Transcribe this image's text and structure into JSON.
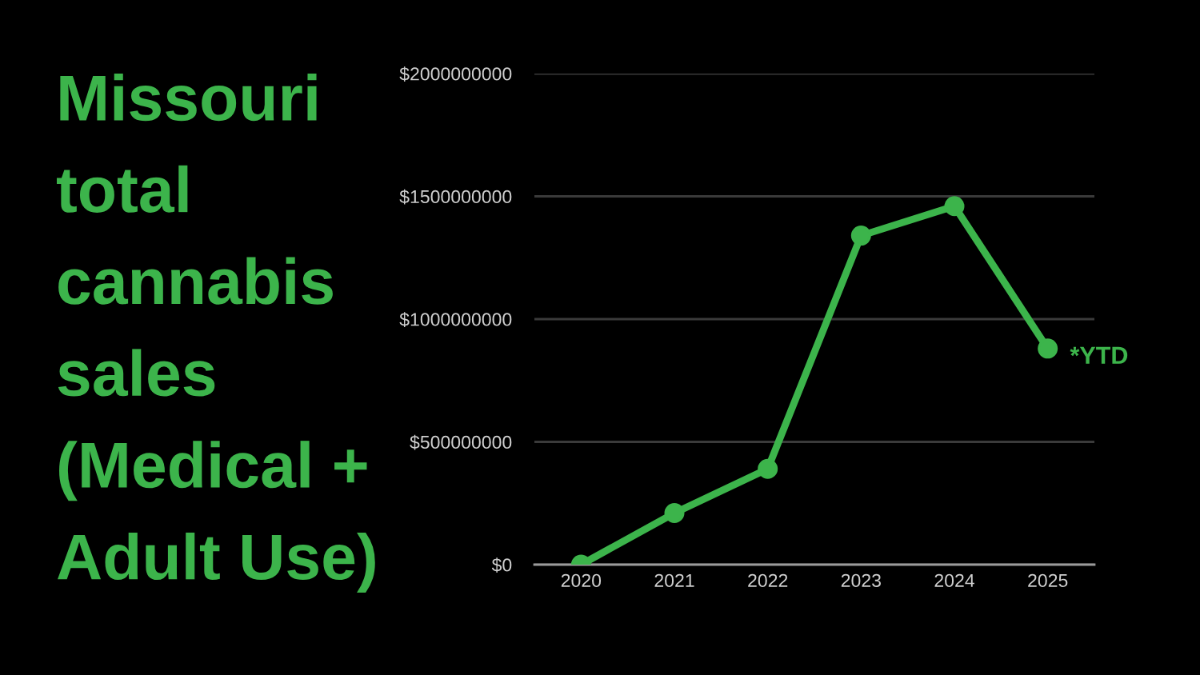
{
  "chart_data": {
    "type": "line",
    "title": "Missouri\ntotal\ncannabis\nsales\n(Medical +\nAdult Use)",
    "categories": [
      "2020",
      "2021",
      "2022",
      "2023",
      "2024",
      "2025"
    ],
    "series": [
      {
        "color": "#3cb44b",
        "values": [
          0,
          210000000,
          390000000,
          1340000000,
          1460000000,
          880000000
        ]
      }
    ],
    "ylim": [
      0,
      2000000000
    ],
    "yticks": [
      {
        "value": 0,
        "label": "$0"
      },
      {
        "value": 500000000,
        "label": "$500000000"
      },
      {
        "value": 1000000000,
        "label": "$1000000000"
      },
      {
        "value": 1500000000,
        "label": "$1500000000"
      },
      {
        "value": 2000000000,
        "label": "$2000000000"
      }
    ],
    "grid": "y",
    "marker": "circle",
    "line_style": "solid",
    "annotations": [
      {
        "text": "*YTD",
        "x": "2025",
        "y": 880000000
      }
    ]
  }
}
